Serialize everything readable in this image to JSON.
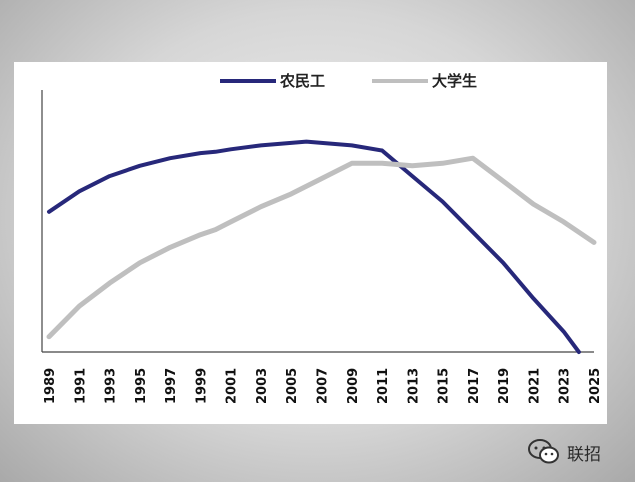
{
  "chart_data": {
    "type": "line",
    "title": "",
    "xlabel": "",
    "ylabel": "",
    "x_labels": [
      "1989",
      "1991",
      "1993",
      "1995",
      "1997",
      "1999",
      "2001",
      "2003",
      "2005",
      "2007",
      "2009",
      "2011",
      "2013",
      "2015",
      "2017",
      "2019",
      "2021",
      "2023",
      "2025"
    ],
    "xlim": [
      1989,
      2025
    ],
    "ylim": [
      0,
      100
    ],
    "legend_position": "top",
    "grid": false,
    "series": [
      {
        "name": "农民工",
        "color": "#27287a",
        "points": [
          [
            1989,
            55
          ],
          [
            1991,
            63
          ],
          [
            1993,
            69
          ],
          [
            1995,
            73
          ],
          [
            1997,
            76
          ],
          [
            1999,
            78
          ],
          [
            2000,
            78.5
          ],
          [
            2001,
            79.5
          ],
          [
            2003,
            81
          ],
          [
            2005,
            82
          ],
          [
            2006,
            82.5
          ],
          [
            2007,
            82
          ],
          [
            2009,
            81
          ],
          [
            2011,
            79
          ],
          [
            2013,
            69
          ],
          [
            2015,
            59
          ],
          [
            2017,
            47
          ],
          [
            2019,
            35
          ],
          [
            2021,
            21
          ],
          [
            2023,
            8
          ],
          [
            2024,
            0
          ]
        ]
      },
      {
        "name": "大学生",
        "color": "#bfbfbf",
        "points": [
          [
            1989,
            6
          ],
          [
            1991,
            18
          ],
          [
            1993,
            27
          ],
          [
            1995,
            35
          ],
          [
            1997,
            41
          ],
          [
            1999,
            46
          ],
          [
            2000,
            48
          ],
          [
            2001,
            51
          ],
          [
            2003,
            57
          ],
          [
            2005,
            62
          ],
          [
            2007,
            68
          ],
          [
            2009,
            74
          ],
          [
            2011,
            74
          ],
          [
            2013,
            73
          ],
          [
            2015,
            74
          ],
          [
            2017,
            76
          ],
          [
            2019,
            67
          ],
          [
            2021,
            58
          ],
          [
            2023,
            51
          ],
          [
            2025,
            43
          ]
        ]
      }
    ]
  },
  "watermark": {
    "label": "联招",
    "icon": "wechat-icon"
  }
}
